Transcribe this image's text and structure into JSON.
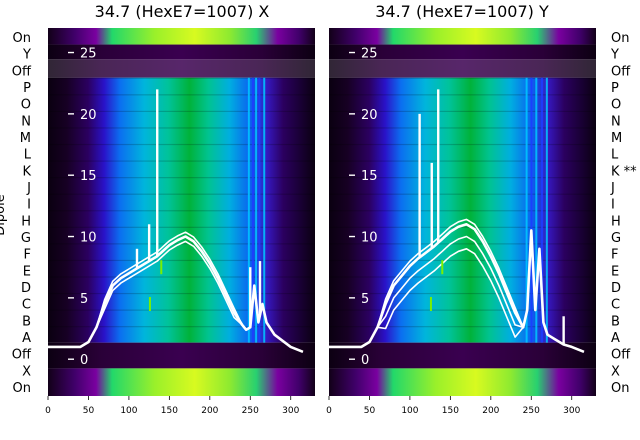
{
  "figure": {
    "ylabel": "Dipole"
  },
  "chart_data": [
    {
      "type": "heatmap",
      "title": "34.7 (HexE7=1007) X",
      "xlabel": "",
      "ylabel": "Dipole",
      "xlim": [
        0,
        330
      ],
      "x_ticks": [
        0,
        50,
        100,
        150,
        200,
        250,
        300
      ],
      "ylim": [
        -3,
        27
      ],
      "y_ticks": [
        0,
        5,
        10,
        15,
        20,
        25
      ],
      "row_labels_left": [
        "On",
        "Y",
        "Off",
        "P",
        "O",
        "N",
        "M",
        "L",
        "K",
        "J",
        "I",
        "H",
        "G",
        "F",
        "E",
        "D",
        "C",
        "B",
        "A",
        "Off",
        "X",
        "On"
      ],
      "series": [
        {
          "x": [
            0,
            20,
            40,
            50,
            60,
            70,
            80,
            90,
            100,
            110,
            120,
            130,
            135,
            140,
            145,
            150,
            160,
            170,
            180,
            190,
            200,
            210,
            220,
            230,
            240,
            245,
            250,
            255,
            260,
            265,
            270,
            280,
            290,
            300,
            315
          ],
          "y": [
            1.0,
            1.0,
            1.0,
            1.4,
            2.6,
            4.5,
            6.0,
            6.6,
            7.0,
            7.4,
            7.8,
            8.2,
            8.4,
            8.7,
            9.0,
            9.3,
            9.7,
            10.0,
            9.6,
            8.8,
            7.8,
            6.6,
            5.2,
            3.8,
            2.8,
            2.4,
            2.6,
            6.0,
            3.0,
            4.5,
            3.0,
            2.0,
            1.5,
            1.0,
            0.6
          ]
        }
      ],
      "spikes": [
        {
          "x": 135,
          "y": 22
        },
        {
          "x": 125,
          "y": 11
        },
        {
          "x": 110,
          "y": 9
        },
        {
          "x": 250,
          "y": 7.5
        },
        {
          "x": 262,
          "y": 8
        }
      ]
    },
    {
      "type": "heatmap",
      "title": "34.7 (HexE7=1007) Y",
      "xlabel": "",
      "ylabel": "",
      "xlim": [
        0,
        330
      ],
      "x_ticks": [
        0,
        50,
        100,
        150,
        200,
        250,
        300
      ],
      "ylim": [
        -3,
        27
      ],
      "y_ticks": [
        0,
        5,
        10,
        15,
        20,
        25
      ],
      "row_labels_right": [
        "On",
        "Y",
        "Off",
        "P",
        "O",
        "N",
        "M",
        "L",
        "K **",
        "J",
        "I",
        "H",
        "G",
        "F",
        "E",
        "D",
        "C",
        "B",
        "A",
        "Off",
        "X",
        "On"
      ],
      "series": [
        {
          "x": [
            0,
            20,
            40,
            50,
            60,
            70,
            80,
            90,
            100,
            110,
            120,
            130,
            135,
            140,
            145,
            150,
            160,
            170,
            180,
            190,
            200,
            210,
            220,
            230,
            240,
            245,
            250,
            255,
            260,
            265,
            270,
            280,
            290,
            300,
            315
          ],
          "y": [
            1.0,
            1.0,
            1.0,
            1.4,
            2.6,
            4.5,
            6.0,
            6.8,
            7.6,
            8.2,
            8.7,
            9.2,
            9.5,
            9.8,
            10.1,
            10.4,
            10.8,
            11.0,
            10.6,
            9.6,
            8.4,
            7.0,
            5.4,
            3.8,
            2.6,
            4.0,
            10.5,
            4.0,
            9.0,
            3.0,
            2.0,
            1.6,
            1.2,
            1.0,
            0.6
          ]
        }
      ],
      "spikes": [
        {
          "x": 135,
          "y": 22
        },
        {
          "x": 112,
          "y": 20
        },
        {
          "x": 127,
          "y": 16
        },
        {
          "x": 250,
          "y": 10.5
        },
        {
          "x": 290,
          "y": 3.5
        }
      ]
    }
  ]
}
